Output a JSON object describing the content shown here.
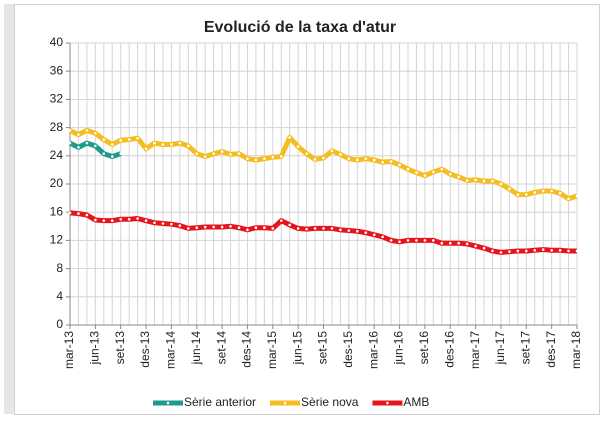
{
  "chart_data": {
    "type": "line",
    "title": "Evolució de la taxa d'atur",
    "categories": [
      "mar-13",
      null,
      null,
      "jun-13",
      null,
      null,
      "set-13",
      null,
      null,
      "des-13",
      null,
      null,
      "mar-14",
      null,
      null,
      "jun-14",
      null,
      null,
      "set-14",
      null,
      null,
      "des-14",
      null,
      null,
      "mar-15",
      null,
      null,
      "jun-15",
      null,
      null,
      "set-15",
      null,
      null,
      "des-15",
      null,
      null,
      "mar-16",
      null,
      null,
      "jun-16",
      null,
      null,
      "set-16",
      null,
      null,
      "des-16",
      null,
      null,
      "mar-17",
      null,
      null,
      "jun-17",
      null,
      null,
      "set-17",
      null,
      null,
      "des-17",
      null,
      null,
      "mar-18"
    ],
    "series": [
      {
        "name": "Sèrie anterior",
        "color": "#1f9a8a",
        "values": [
          25.8,
          25.2,
          25.8,
          25.4,
          24.3,
          23.9,
          24.3,
          null,
          null,
          null,
          null,
          null,
          null,
          null,
          null,
          null,
          null,
          null,
          null,
          null,
          null,
          null,
          null,
          null,
          null,
          null,
          null,
          null,
          null,
          null,
          null,
          null,
          null,
          null,
          null,
          null,
          null,
          null,
          null,
          null,
          null,
          null,
          null,
          null,
          null,
          null,
          null,
          null,
          null,
          null,
          null,
          null,
          null,
          null,
          null,
          null,
          null,
          null,
          null,
          null,
          null
        ]
      },
      {
        "name": "Sèrie nova",
        "color": "#f5bd1f",
        "values": [
          27.6,
          27.0,
          27.6,
          27.2,
          26.3,
          25.6,
          26.2,
          26.3,
          26.5,
          25.0,
          25.8,
          25.6,
          25.6,
          25.8,
          25.4,
          24.3,
          23.9,
          24.3,
          24.6,
          24.2,
          24.3,
          23.6,
          23.4,
          23.6,
          23.8,
          23.9,
          26.6,
          25.3,
          24.3,
          23.5,
          23.7,
          24.7,
          24.2,
          23.6,
          23.4,
          23.6,
          23.4,
          23.1,
          23.2,
          22.7,
          22.1,
          21.6,
          21.2,
          21.7,
          22.1,
          21.4,
          21.0,
          20.5,
          20.6,
          20.4,
          20.4,
          20.0,
          19.3,
          18.5,
          18.5,
          18.8,
          19.0,
          19.0,
          18.7,
          17.9,
          18.3
        ]
      },
      {
        "name": "AMB",
        "color": "#e8141c",
        "values": [
          15.9,
          15.8,
          15.6,
          14.9,
          14.8,
          14.8,
          15.0,
          15.0,
          15.1,
          14.8,
          14.5,
          14.4,
          14.3,
          14.1,
          13.7,
          13.8,
          13.9,
          13.9,
          13.9,
          14.0,
          13.8,
          13.5,
          13.8,
          13.8,
          13.7,
          14.8,
          14.2,
          13.7,
          13.6,
          13.7,
          13.7,
          13.7,
          13.5,
          13.4,
          13.3,
          13.1,
          12.8,
          12.5,
          12.0,
          11.8,
          12.0,
          12.0,
          12.0,
          12.0,
          11.6,
          11.6,
          11.6,
          11.5,
          11.2,
          10.9,
          10.5,
          10.3,
          10.4,
          10.5,
          10.5,
          10.6,
          10.7,
          10.6,
          10.6,
          10.5,
          10.5
        ]
      }
    ],
    "ylim": [
      0,
      40
    ],
    "yticks": [
      0,
      4,
      8,
      12,
      16,
      20,
      24,
      28,
      32,
      36,
      40
    ],
    "grid": true,
    "legend": "bottom"
  }
}
